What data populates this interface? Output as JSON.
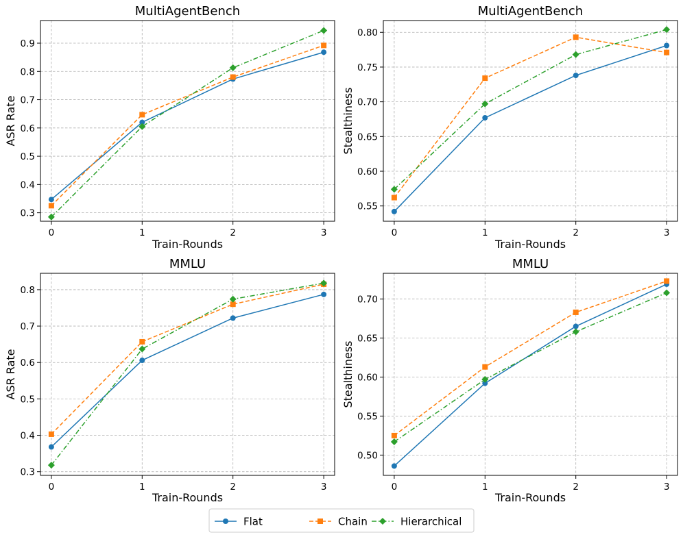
{
  "chart_data": [
    {
      "type": "line",
      "title": "MultiAgentBench",
      "xlabel": "Train-Rounds",
      "ylabel": "ASR Rate",
      "x": [
        0,
        1,
        2,
        3
      ],
      "xlim": [
        -0.12,
        3.12
      ],
      "ylim": [
        0.27,
        0.98
      ],
      "yticks": [
        0.3,
        0.4,
        0.5,
        0.6,
        0.7,
        0.8,
        0.9
      ],
      "ytick_labels": [
        "0.3",
        "0.4",
        "0.5",
        "0.6",
        "0.7",
        "0.8",
        "0.9"
      ],
      "grid": true,
      "series": [
        {
          "name": "Flat",
          "values": [
            0.347,
            0.62,
            0.773,
            0.868
          ]
        },
        {
          "name": "Chain",
          "values": [
            0.325,
            0.647,
            0.78,
            0.892
          ]
        },
        {
          "name": "Hierarchical",
          "values": [
            0.285,
            0.605,
            0.813,
            0.945
          ]
        }
      ]
    },
    {
      "type": "line",
      "title": "MultiAgentBench",
      "xlabel": "Train-Rounds",
      "ylabel": "Stealthiness",
      "x": [
        0,
        1,
        2,
        3
      ],
      "xlim": [
        -0.12,
        3.12
      ],
      "ylim": [
        0.528,
        0.817
      ],
      "yticks": [
        0.55,
        0.6,
        0.65,
        0.7,
        0.75,
        0.8
      ],
      "ytick_labels": [
        "0.55",
        "0.60",
        "0.65",
        "0.70",
        "0.75",
        "0.80"
      ],
      "grid": true,
      "series": [
        {
          "name": "Flat",
          "values": [
            0.542,
            0.677,
            0.738,
            0.781
          ]
        },
        {
          "name": "Chain",
          "values": [
            0.562,
            0.734,
            0.793,
            0.771
          ]
        },
        {
          "name": "Hierarchical",
          "values": [
            0.574,
            0.697,
            0.768,
            0.804
          ]
        }
      ]
    },
    {
      "type": "line",
      "title": "MMLU",
      "xlabel": "Train-Rounds",
      "ylabel": "ASR Rate",
      "x": [
        0,
        1,
        2,
        3
      ],
      "xlim": [
        -0.12,
        3.12
      ],
      "ylim": [
        0.29,
        0.845
      ],
      "yticks": [
        0.3,
        0.4,
        0.5,
        0.6,
        0.7,
        0.8
      ],
      "ytick_labels": [
        "0.3",
        "0.4",
        "0.5",
        "0.6",
        "0.7",
        "0.8"
      ],
      "grid": true,
      "series": [
        {
          "name": "Flat",
          "values": [
            0.368,
            0.606,
            0.722,
            0.787
          ]
        },
        {
          "name": "Chain",
          "values": [
            0.403,
            0.657,
            0.76,
            0.815
          ]
        },
        {
          "name": "Hierarchical",
          "values": [
            0.318,
            0.637,
            0.774,
            0.818
          ]
        }
      ]
    },
    {
      "type": "line",
      "title": "MMLU",
      "xlabel": "Train-Rounds",
      "ylabel": "Stealthiness",
      "x": [
        0,
        1,
        2,
        3
      ],
      "xlim": [
        -0.12,
        3.12
      ],
      "ylim": [
        0.474,
        0.733
      ],
      "yticks": [
        0.5,
        0.55,
        0.6,
        0.65,
        0.7
      ],
      "ytick_labels": [
        "0.50",
        "0.55",
        "0.60",
        "0.65",
        "0.70"
      ],
      "grid": true,
      "series": [
        {
          "name": "Flat",
          "values": [
            0.486,
            0.592,
            0.665,
            0.719
          ]
        },
        {
          "name": "Chain",
          "values": [
            0.525,
            0.613,
            0.683,
            0.723
          ]
        },
        {
          "name": "Hierarchical",
          "values": [
            0.517,
            0.597,
            0.658,
            0.708
          ]
        }
      ]
    }
  ],
  "legend": {
    "placement": "bottom-center",
    "items": [
      {
        "label": "Flat",
        "color": "#1f77b4",
        "marker": "circle",
        "linestyle": "solid"
      },
      {
        "label": "Chain",
        "color": "#ff7f0e",
        "marker": "square",
        "linestyle": "dashed"
      },
      {
        "label": "Hierarchical",
        "color": "#2ca02c",
        "marker": "diamond",
        "linestyle": "dashdot"
      }
    ]
  }
}
